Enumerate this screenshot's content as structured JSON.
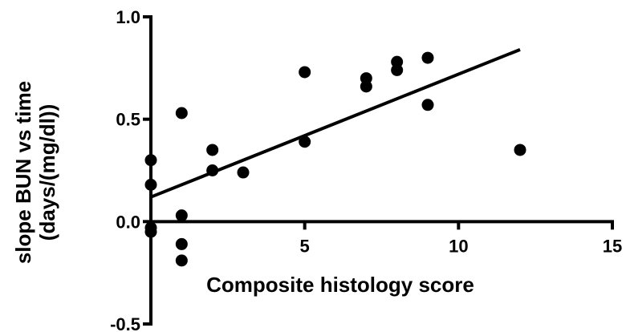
{
  "chart_data": {
    "type": "scatter",
    "title": "",
    "xlabel": "Composite histology score",
    "ylabel_lines": [
      "slope BUN vs time",
      "(days/(mg/dl))"
    ],
    "xlim": [
      0,
      15
    ],
    "ylim": [
      -0.5,
      1.0
    ],
    "x_ticks": [
      5,
      10,
      15
    ],
    "x_tick_labels": [
      "5",
      "10",
      "15"
    ],
    "y_ticks": [
      -0.5,
      0.0,
      0.5,
      1.0
    ],
    "y_tick_labels": [
      "-0.5",
      "0.0",
      "0.5",
      "1.0"
    ],
    "grid": false,
    "points": [
      {
        "x": 0,
        "y": 0.3
      },
      {
        "x": 0,
        "y": 0.18
      },
      {
        "x": 0,
        "y": -0.03
      },
      {
        "x": 0,
        "y": -0.05
      },
      {
        "x": 1,
        "y": 0.53
      },
      {
        "x": 1,
        "y": 0.03
      },
      {
        "x": 1,
        "y": -0.11
      },
      {
        "x": 1,
        "y": -0.19
      },
      {
        "x": 2,
        "y": 0.35
      },
      {
        "x": 2,
        "y": 0.25
      },
      {
        "x": 3,
        "y": 0.24
      },
      {
        "x": 5,
        "y": 0.73
      },
      {
        "x": 5,
        "y": 0.39
      },
      {
        "x": 7,
        "y": 0.7
      },
      {
        "x": 7,
        "y": 0.66
      },
      {
        "x": 8,
        "y": 0.78
      },
      {
        "x": 8,
        "y": 0.74
      },
      {
        "x": 9,
        "y": 0.8
      },
      {
        "x": 9,
        "y": 0.57
      },
      {
        "x": 12,
        "y": 0.35
      }
    ],
    "regression_line": {
      "x": [
        0,
        12
      ],
      "y": [
        0.12,
        0.84
      ]
    }
  }
}
